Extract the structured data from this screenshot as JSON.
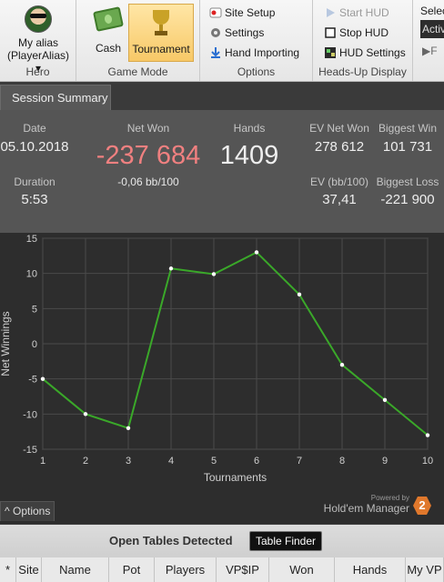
{
  "ribbon": {
    "hero": {
      "name": "My alias",
      "alias": "(PlayerAlias)",
      "caret": "▾",
      "label": "Hero"
    },
    "game_mode": {
      "cash": "Cash",
      "tournament": "Tournament",
      "label": "Game Mode"
    },
    "options": {
      "site_setup": "Site Setup",
      "settings": "Settings",
      "hand_importing": "Hand Importing",
      "label": "Options"
    },
    "hud": {
      "start": "Start HUD",
      "stop": "Stop HUD",
      "settings": "HUD Settings",
      "label": "Heads-Up Display"
    },
    "select": {
      "label": "Selec",
      "value": "Activ",
      "extra": "F"
    }
  },
  "tabs": {
    "session_summary": "Session Summary"
  },
  "summary": {
    "date_label": "Date",
    "date": "05.10.2018",
    "net_won_label": "Net Won",
    "net_won": "-237 684",
    "bb": "-0,06 bb/100",
    "hands_label": "Hands",
    "hands": "1409",
    "ev_net_won_label": "EV Net Won",
    "ev_net_won": "278 612",
    "biggest_win_label": "Biggest Win",
    "biggest_win": "101 731",
    "duration_label": "Duration",
    "duration": "5:53",
    "ev_bb_label": "EV (bb/100)",
    "ev_bb": "37,41",
    "biggest_loss_label": "Biggest Loss",
    "biggest_loss": "-221 900"
  },
  "chart_data": {
    "type": "line",
    "x": [
      1,
      2,
      3,
      4,
      5,
      6,
      7,
      8,
      9,
      10
    ],
    "series": [
      {
        "values": [
          -5,
          -10,
          -12,
          10.7,
          9.9,
          13,
          7,
          -3,
          -8,
          -13
        ]
      }
    ],
    "xlabel": "Tournaments",
    "ylabel": "Net Winnings",
    "xlim": [
      1,
      10
    ],
    "ylim": [
      -15,
      15
    ],
    "yticks": [
      15,
      10,
      5,
      0,
      -5,
      -10,
      -15
    ],
    "xticks": [
      1,
      2,
      3,
      4,
      5,
      6,
      7,
      8,
      9,
      10
    ],
    "grid": true,
    "line_color": "#3aa829"
  },
  "chart_footer": {
    "powered": "Powered by",
    "brand": "Hold'em Manager",
    "logo": "2",
    "options": "Options",
    "options_caret": "^"
  },
  "tables": {
    "title": "Open Tables Detected",
    "finder": "Table Finder",
    "columns": [
      "*",
      "Site",
      "Name",
      "Pot",
      "Players",
      "VP$IP",
      "Won",
      "Hands",
      "My VP"
    ]
  },
  "colors": {
    "net_won": "#f08080",
    "accent": "#f8c968"
  }
}
